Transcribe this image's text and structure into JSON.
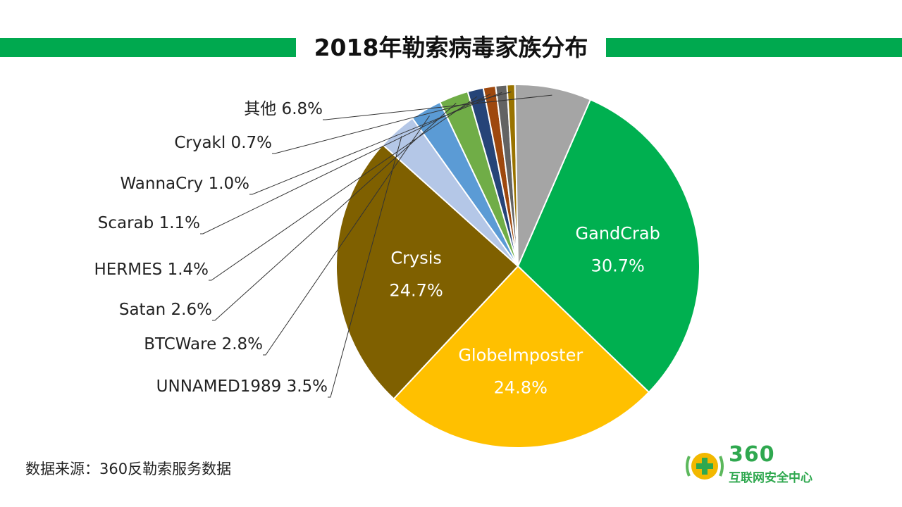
{
  "title": "2018年勒索病毒家族分布",
  "source": "数据来源：360反勒索服务数据",
  "logo": {
    "number": "360",
    "name": "互联网安全中心"
  },
  "chart_data": {
    "type": "pie",
    "title": "2018年勒索病毒家族分布",
    "slices": [
      {
        "name": "GandCrab",
        "value": 30.7,
        "label": "30.7%",
        "color": "#00b050",
        "label_inside": true
      },
      {
        "name": "GlobeImposter",
        "value": 24.8,
        "label": "24.8%",
        "color": "#ffc000",
        "label_inside": true
      },
      {
        "name": "Crysis",
        "value": 24.7,
        "label": "24.7%",
        "color": "#7f6000",
        "label_inside": true
      },
      {
        "name": "UNNAMED1989",
        "value": 3.5,
        "label": "UNNAMED1989 3.5%",
        "color": "#b4c7e7",
        "label_inside": false
      },
      {
        "name": "BTCWare",
        "value": 2.8,
        "label": "BTCWare 2.8%",
        "color": "#5b9bd5",
        "label_inside": false
      },
      {
        "name": "Satan",
        "value": 2.6,
        "label": "Satan 2.6%",
        "color": "#70ad47",
        "label_inside": false
      },
      {
        "name": "HERMES",
        "value": 1.4,
        "label": "HERMES 1.4%",
        "color": "#264478",
        "label_inside": false
      },
      {
        "name": "Scarab",
        "value": 1.1,
        "label": "Scarab 1.1%",
        "color": "#9e480e",
        "label_inside": false
      },
      {
        "name": "WannaCry",
        "value": 1.0,
        "label": "WannaCry 1.0%",
        "color": "#636363",
        "label_inside": false
      },
      {
        "name": "Cryakl",
        "value": 0.7,
        "label": "Cryakl 0.7%",
        "color": "#997300",
        "label_inside": false
      },
      {
        "name": "其他",
        "value": 6.8,
        "label": "其他 6.8%",
        "color": "#a5a5a5",
        "label_inside": false
      }
    ]
  }
}
